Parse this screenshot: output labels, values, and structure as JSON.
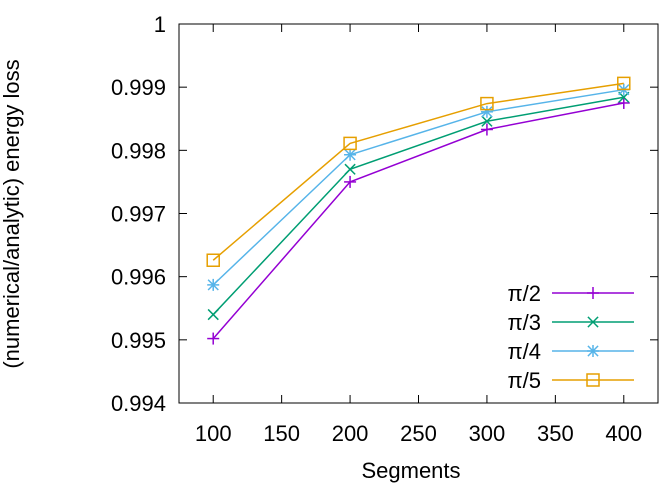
{
  "chart_data": {
    "type": "line",
    "title": "",
    "xlabel": "Segments",
    "ylabel": "(numerical/analytic) energy loss",
    "xlim": [
      75,
      425
    ],
    "ylim": [
      0.994,
      1.0
    ],
    "xticks": [
      100,
      150,
      200,
      250,
      300,
      350,
      400
    ],
    "yticks": [
      0.994,
      0.995,
      0.996,
      0.997,
      0.998,
      0.999,
      1.0
    ],
    "xtick_labels": [
      "100",
      "150",
      "200",
      "250",
      "300",
      "350",
      "400"
    ],
    "ytick_labels": [
      "0.994",
      "0.995",
      "0.996",
      "0.997",
      "0.998",
      "0.999",
      "1"
    ],
    "grid": false,
    "legend_position": "bottom-right",
    "x": [
      100,
      200,
      300,
      400
    ],
    "series": [
      {
        "name": "π/2",
        "color": "#9400d3",
        "marker": "plus",
        "values": [
          0.99502,
          0.9975,
          0.99833,
          0.99875
        ]
      },
      {
        "name": "π/3",
        "color": "#009e73",
        "marker": "cross",
        "values": [
          0.9954,
          0.9977,
          0.99846,
          0.99884
        ]
      },
      {
        "name": "π/4",
        "color": "#56b4e9",
        "marker": "star",
        "values": [
          0.99587,
          0.99793,
          0.99861,
          0.99896
        ]
      },
      {
        "name": "π/5",
        "color": "#e69f00",
        "marker": "square",
        "values": [
          0.99626,
          0.99811,
          0.99874,
          0.99906
        ]
      }
    ]
  }
}
